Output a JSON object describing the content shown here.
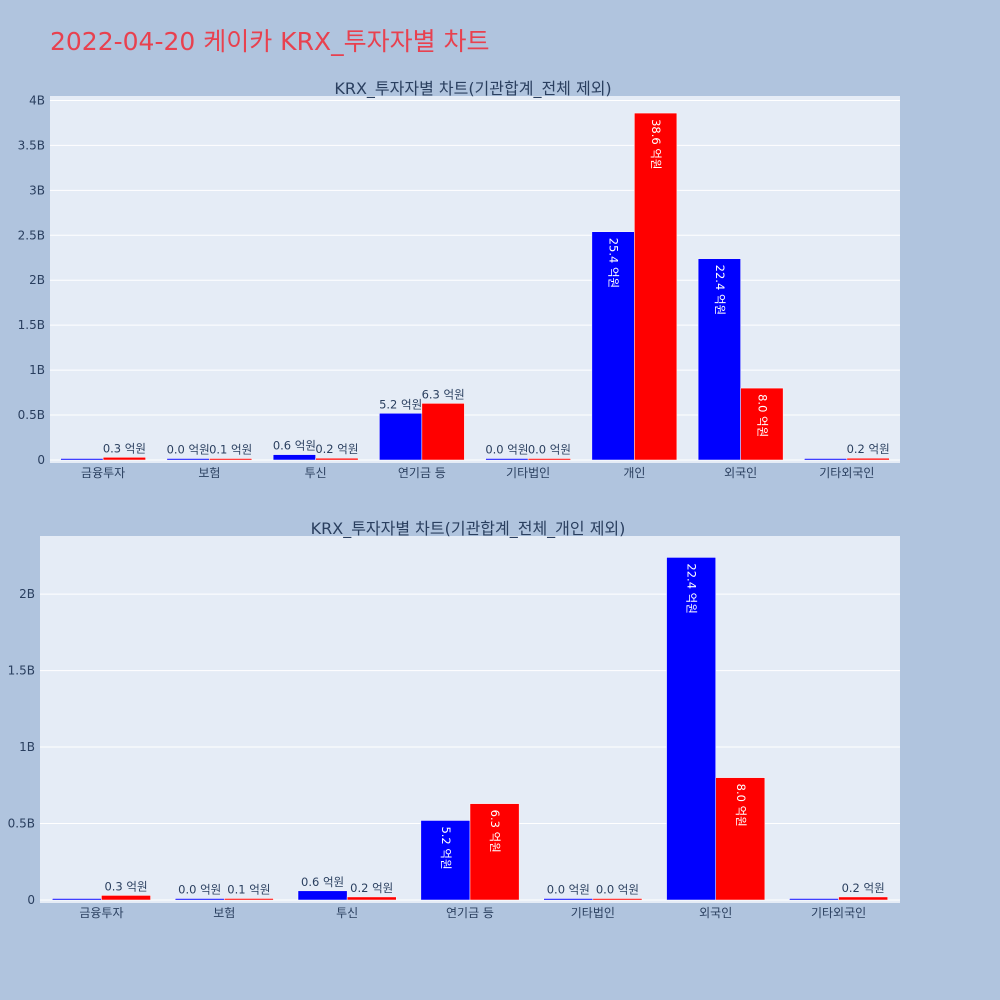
{
  "page_title": "2022-04-20 케이카 KRX_투자자별 차트",
  "colors": {
    "page_bg": "#b0c4de",
    "plot_bg": "#e5ecf6",
    "buy": "#0000ff",
    "sell": "#ff0000",
    "title": "#e8414f",
    "text": "#2a3f5f"
  },
  "chart_data": [
    {
      "type": "bar",
      "title": "KRX_투자자별 차트(기관합계_전체 제외)",
      "categories": [
        "금융투자",
        "보험",
        "투신",
        "연기금 등",
        "기타법인",
        "개인",
        "외국인",
        "기타외국인"
      ],
      "series": [
        {
          "color": "#0000ff",
          "values": [
            0.0,
            0.004,
            0.06,
            0.52,
            0.001,
            2.54,
            2.24,
            0.002
          ],
          "labels": [
            "",
            "0.0 억원",
            "0.6 억원",
            "5.2 억원",
            "0.0 억원",
            "25.4 억원",
            "22.4 억원",
            ""
          ]
        },
        {
          "color": "#ff0000",
          "values": [
            0.03,
            0.01,
            0.02,
            0.63,
            0.001,
            3.86,
            0.8,
            0.02
          ],
          "labels": [
            "0.3 억원",
            "0.1 억원",
            "0.2 억원",
            "6.3 억원",
            "0.0 억원",
            "38.6 억원",
            "8.0 억원",
            "0.2 억원"
          ]
        }
      ],
      "yticks": [
        0,
        0.5,
        1,
        1.5,
        2,
        2.5,
        3,
        3.5,
        4
      ],
      "yticklabels": [
        "0",
        "0.5B",
        "1B",
        "1.5B",
        "2B",
        "2.5B",
        "3B",
        "3.5B",
        "4B"
      ],
      "ylim": [
        0,
        4.05
      ]
    },
    {
      "type": "bar",
      "title": "KRX_투자자별 차트(기관합계_전체_개인 제외)",
      "categories": [
        "금융투자",
        "보험",
        "투신",
        "연기금 등",
        "기타법인",
        "외국인",
        "기타외국인"
      ],
      "series": [
        {
          "color": "#0000ff",
          "values": [
            0.0,
            0.004,
            0.06,
            0.52,
            0.001,
            2.24,
            0.002
          ],
          "labels": [
            "",
            "0.0 억원",
            "0.6 억원",
            "5.2 억원",
            "0.0 억원",
            "22.4 억원",
            ""
          ]
        },
        {
          "color": "#ff0000",
          "values": [
            0.03,
            0.01,
            0.02,
            0.63,
            0.001,
            0.8,
            0.02
          ],
          "labels": [
            "0.3 억원",
            "0.1 억원",
            "0.2 억원",
            "6.3 억원",
            "0.0 억원",
            "8.0 억원",
            "0.2 억원"
          ]
        }
      ],
      "yticks": [
        0,
        0.5,
        1,
        1.5,
        2
      ],
      "yticklabels": [
        "0",
        "0.5B",
        "1B",
        "1.5B",
        "2B"
      ],
      "ylim": [
        0,
        2.38
      ]
    }
  ]
}
